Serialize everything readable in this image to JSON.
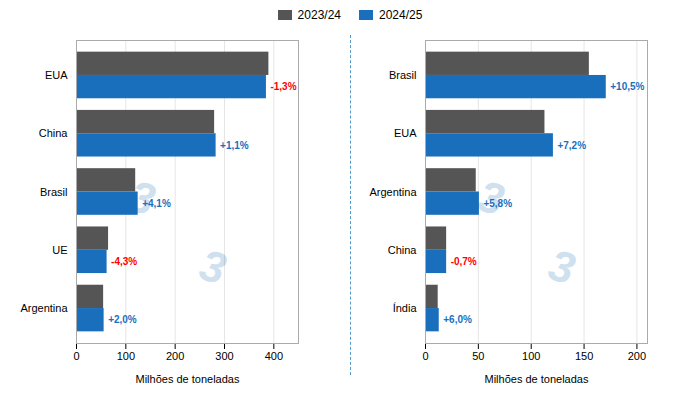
{
  "chart_data": [
    {
      "type": "bar",
      "orientation": "horizontal",
      "categories": [
        "Argentina",
        "UE",
        "Brasil",
        "China",
        "EUA"
      ],
      "series": [
        {
          "name": "2023/24",
          "color": "#555555",
          "values": [
            55,
            65,
            120,
            280,
            390
          ]
        },
        {
          "name": "2024/25",
          "color": "#1a6fbd",
          "values": [
            56,
            62,
            125,
            283,
            385
          ]
        }
      ],
      "xlabel": "Milhões de toneladas",
      "xlim": [
        0,
        450
      ],
      "xticks": [
        0,
        100,
        200,
        300,
        400
      ],
      "grid": true,
      "legend": "top",
      "annotations": [
        {
          "text": "+2,0%",
          "category": "Argentina",
          "series": "2024/25",
          "color": "#1a6fbd"
        },
        {
          "text": "-4,3%",
          "category": "UE",
          "series": "2024/25",
          "color": "#ff0000"
        },
        {
          "text": "+4,1%",
          "category": "Brasil",
          "series": "2024/25",
          "color": "#1a6fbd"
        },
        {
          "text": "+1,1%",
          "category": "China",
          "series": "2024/25",
          "color": "#1a6fbd"
        },
        {
          "text": "-1,3%",
          "category": "EUA",
          "series": "2024/25",
          "color": "#ff0000"
        },
        {
          "text": "3",
          "color": "#cfe0ef"
        },
        {
          "text": "3",
          "color": "#cfe0ef"
        }
      ]
    },
    {
      "type": "bar",
      "orientation": "horizontal",
      "categories": [
        "Índia",
        "China",
        "Argentina",
        "EUA",
        "Brasil"
      ],
      "series": [
        {
          "name": "2023/24",
          "color": "#555555",
          "values": [
            12,
            20,
            48,
            113,
            155
          ]
        },
        {
          "name": "2024/25",
          "color": "#1a6fbd",
          "values": [
            13,
            20,
            51,
            121,
            171
          ]
        }
      ],
      "xlabel": "Milhões de toneladas",
      "xlim": [
        0,
        210
      ],
      "xticks": [
        0,
        50,
        100,
        150,
        200
      ],
      "grid": true,
      "legend": "top",
      "annotations": [
        {
          "text": "+6,0%",
          "category": "Índia",
          "series": "2024/25",
          "color": "#1a6fbd"
        },
        {
          "text": "-0,7%",
          "category": "China",
          "series": "2024/25",
          "color": "#ff0000"
        },
        {
          "text": "+5,8%",
          "category": "Argentina",
          "series": "2024/25",
          "color": "#1a6fbd"
        },
        {
          "text": "+7,2%",
          "category": "EUA",
          "series": "2024/25",
          "color": "#1a6fbd"
        },
        {
          "text": "+10,5%",
          "category": "Brasil",
          "series": "2024/25",
          "color": "#1a6fbd"
        },
        {
          "text": "3",
          "color": "#cfe0ef"
        },
        {
          "text": "3",
          "color": "#cfe0ef"
        }
      ]
    }
  ]
}
